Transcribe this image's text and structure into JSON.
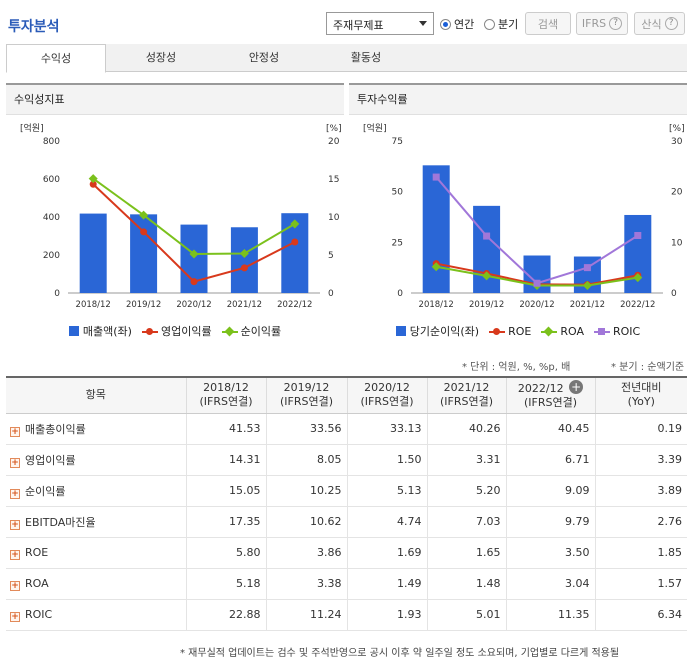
{
  "header": {
    "title": "투자분석",
    "select_value": "주재무제표",
    "radio_annual": "연간",
    "radio_quarter": "분기",
    "search_btn": "검색",
    "ifrs_btn": "IFRS",
    "formula_btn": "산식",
    "help_mark": "?"
  },
  "tabs": [
    "수익성",
    "성장성",
    "안정성",
    "활동성"
  ],
  "left_chart": {
    "panel_title": "수익성지표",
    "left_unit": "[억원]",
    "right_unit": "[%]",
    "legend": [
      "매출액(좌)",
      "영업이익률",
      "순이익률"
    ],
    "colors": {
      "bar": "#2a66d6",
      "op": "#d8391c",
      "net": "#7bc11c"
    }
  },
  "right_chart": {
    "panel_title": "투자수익률",
    "left_unit": "[억원]",
    "right_unit": "[%]",
    "legend": [
      "당기순이익(좌)",
      "ROE",
      "ROA",
      "ROIC"
    ],
    "colors": {
      "bar": "#2a66d6",
      "roe": "#d8391c",
      "roa": "#7bc11c",
      "roic": "#a177d9"
    }
  },
  "chart_data": [
    {
      "type": "bar",
      "categories": [
        "2018/12",
        "2019/12",
        "2020/12",
        "2021/12",
        "2022/12"
      ],
      "y_left_ticks": [
        "800",
        "600",
        "400",
        "200",
        "0"
      ],
      "y_right_ticks": [
        "20",
        "15",
        "10",
        "5",
        "0"
      ],
      "ylim_left": [
        0,
        800
      ],
      "ylim_right": [
        0,
        20
      ],
      "series": [
        {
          "name": "매출액(좌)",
          "kind": "bar",
          "axis": "left",
          "values": [
            418,
            414,
            360,
            346,
            420
          ]
        },
        {
          "name": "영업이익률",
          "kind": "line",
          "axis": "right",
          "values": [
            14.31,
            8.05,
            1.5,
            3.31,
            6.71
          ]
        },
        {
          "name": "순이익률",
          "kind": "line",
          "axis": "right",
          "values": [
            15.05,
            10.25,
            5.13,
            5.2,
            9.09
          ]
        }
      ]
    },
    {
      "type": "bar",
      "categories": [
        "2018/12",
        "2019/12",
        "2020/12",
        "2021/12",
        "2022/12"
      ],
      "y_left_ticks": [
        "75",
        "50",
        "25",
        "0"
      ],
      "y_right_ticks": [
        "30",
        "20",
        "10",
        "0"
      ],
      "ylim_left": [
        0,
        75
      ],
      "ylim_right": [
        0,
        30
      ],
      "series": [
        {
          "name": "당기순이익(좌)",
          "kind": "bar",
          "axis": "left",
          "values": [
            63,
            43,
            18.5,
            18,
            38.5
          ]
        },
        {
          "name": "ROE",
          "kind": "line",
          "axis": "right",
          "values": [
            5.8,
            3.86,
            1.69,
            1.65,
            3.5
          ]
        },
        {
          "name": "ROA",
          "kind": "line",
          "axis": "right",
          "values": [
            5.18,
            3.38,
            1.49,
            1.48,
            3.04
          ]
        },
        {
          "name": "ROIC",
          "kind": "line",
          "axis": "right",
          "values": [
            22.88,
            11.24,
            1.93,
            5.01,
            11.35
          ]
        }
      ]
    }
  ],
  "notes": {
    "unit": "* 단위 : 억원, %, %p, 배",
    "quarter": "* 분기 : 순액기준"
  },
  "table": {
    "col_item": "항목",
    "periods": [
      {
        "year": "2018/12",
        "basis": "(IFRS연결)"
      },
      {
        "year": "2019/12",
        "basis": "(IFRS연결)"
      },
      {
        "year": "2020/12",
        "basis": "(IFRS연결)"
      },
      {
        "year": "2021/12",
        "basis": "(IFRS연결)"
      },
      {
        "year": "2022/12",
        "basis": "(IFRS연결)"
      }
    ],
    "col_yoy_1": "전년대비",
    "col_yoy_2": "(YoY)",
    "expand_mark": "+",
    "rows": [
      {
        "label": "매출총이익률",
        "values": [
          "41.53",
          "33.56",
          "33.13",
          "40.26",
          "40.45",
          "0.19"
        ]
      },
      {
        "label": "영업이익률",
        "values": [
          "14.31",
          "8.05",
          "1.50",
          "3.31",
          "6.71",
          "3.39"
        ]
      },
      {
        "label": "순이익률",
        "values": [
          "15.05",
          "10.25",
          "5.13",
          "5.20",
          "9.09",
          "3.89"
        ]
      },
      {
        "label": "EBITDA마진율",
        "values": [
          "17.35",
          "10.62",
          "4.74",
          "7.03",
          "9.79",
          "2.76"
        ]
      },
      {
        "label": "ROE",
        "values": [
          "5.80",
          "3.86",
          "1.69",
          "1.65",
          "3.50",
          "1.85"
        ]
      },
      {
        "label": "ROA",
        "values": [
          "5.18",
          "3.38",
          "1.49",
          "1.48",
          "3.04",
          "1.57"
        ]
      },
      {
        "label": "ROIC",
        "values": [
          "22.88",
          "11.24",
          "1.93",
          "5.01",
          "11.35",
          "6.34"
        ]
      }
    ]
  },
  "footer": "* 재무실적 업데이트는 검수 및 주석반영으로 공시 이후 약 일주일 정도 소요되며, 기업별로 다르게 적용될"
}
